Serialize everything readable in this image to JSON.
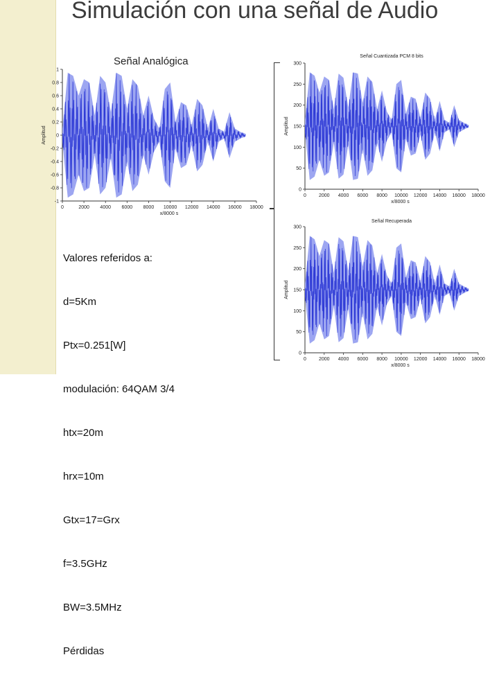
{
  "slide": {
    "title": "Simulación con una señal de Audio",
    "subtitle": "Señal Analógica",
    "params": [
      "Valores referidos a:",
      "d=5Km",
      "Ptx=0.251[W]",
      "modulación: 64QAM 3/4",
      "htx=20m",
      "hrx=10m",
      "Gtx=17=Grx",
      "f=3.5GHz",
      "BW=3.5MHz",
      "Pérdidas"
    ],
    "colors": {
      "waveform": "#2f3bd6",
      "envelope": "#8c96ee",
      "accent_strip": "#f3efcf"
    }
  },
  "chart_data": [
    {
      "type": "line",
      "title": "",
      "xlabel": "x/8000 s",
      "ylabel": "Amplitud",
      "xlim": [
        0,
        18000
      ],
      "ylim": [
        -1,
        1
      ],
      "xticks": [
        "0",
        "2000",
        "4000",
        "6000",
        "8000",
        "10000",
        "12000",
        "14000",
        "16000",
        "18000"
      ],
      "yticks": [
        "-1",
        "-0.8",
        "-0.6",
        "-0.4",
        "-0.2",
        "0",
        "0.2",
        "0.4",
        "0.6",
        "0.8",
        "1"
      ],
      "envelope": {
        "x": [
          0,
          500,
          1000,
          1500,
          2000,
          2500,
          3000,
          3500,
          4000,
          4500,
          5000,
          5500,
          6000,
          6500,
          7000,
          7500,
          8000,
          8500,
          9000,
          9500,
          10000,
          10500,
          11000,
          11500,
          12000,
          12500,
          13000,
          13500,
          14000,
          14500,
          15000,
          15500,
          16000,
          16500,
          17000
        ],
        "y": [
          0.1,
          0.95,
          0.9,
          0.6,
          0.85,
          0.8,
          0.3,
          0.9,
          0.8,
          0.35,
          0.95,
          0.9,
          0.4,
          0.85,
          0.75,
          0.3,
          0.6,
          0.25,
          0.1,
          0.7,
          0.8,
          0.2,
          0.5,
          0.45,
          0.15,
          0.55,
          0.45,
          0.1,
          0.4,
          0.1,
          0.05,
          0.35,
          0.1,
          0.05,
          0.02
        ]
      }
    },
    {
      "type": "line",
      "title": "Señal Cuantizada PCM 8 bits",
      "xlabel": "x/8000 s",
      "ylabel": "Amplitud",
      "xlim": [
        0,
        18000
      ],
      "ylim": [
        0,
        300
      ],
      "xticks": [
        "0",
        "2000",
        "4000",
        "6000",
        "8000",
        "10000",
        "12000",
        "14000",
        "16000",
        "18000"
      ],
      "yticks": [
        "0",
        "50",
        "100",
        "150",
        "200",
        "250",
        "300"
      ],
      "envelope": {
        "x": [
          0,
          500,
          1000,
          1500,
          2000,
          2500,
          3000,
          3500,
          4000,
          4500,
          5000,
          5500,
          6000,
          6500,
          7000,
          7500,
          8000,
          8500,
          9000,
          9500,
          10000,
          10500,
          11000,
          11500,
          12000,
          12500,
          13000,
          13500,
          14000,
          14500,
          15000,
          15500,
          16000,
          16500,
          17000
        ],
        "y": [
          15,
          128,
          120,
          80,
          118,
          110,
          40,
          125,
          115,
          45,
          128,
          125,
          55,
          118,
          105,
          40,
          85,
          35,
          15,
          100,
          110,
          30,
          70,
          65,
          20,
          80,
          65,
          15,
          60,
          15,
          8,
          50,
          15,
          8,
          3
        ]
      }
    },
    {
      "type": "line",
      "title": "Señal Recuperada",
      "xlabel": "x/8000 s",
      "ylabel": "Amplitud",
      "xlim": [
        0,
        18000
      ],
      "ylim": [
        0,
        300
      ],
      "xticks": [
        "0",
        "2000",
        "4000",
        "6000",
        "8000",
        "10000",
        "12000",
        "14000",
        "16000",
        "18000"
      ],
      "yticks": [
        "0",
        "50",
        "100",
        "150",
        "200",
        "250",
        "300"
      ],
      "envelope": {
        "x": [
          0,
          500,
          1000,
          1500,
          2000,
          2500,
          3000,
          3500,
          4000,
          4500,
          5000,
          5500,
          6000,
          6500,
          7000,
          7500,
          8000,
          8500,
          9000,
          9500,
          10000,
          10500,
          11000,
          11500,
          12000,
          12500,
          13000,
          13500,
          14000,
          14500,
          15000,
          15500,
          16000,
          16500,
          17000
        ],
        "y": [
          15,
          128,
          120,
          80,
          118,
          110,
          40,
          125,
          115,
          45,
          128,
          125,
          55,
          118,
          105,
          40,
          85,
          35,
          15,
          100,
          110,
          30,
          70,
          65,
          20,
          80,
          65,
          15,
          60,
          15,
          8,
          50,
          15,
          8,
          3
        ]
      }
    }
  ]
}
